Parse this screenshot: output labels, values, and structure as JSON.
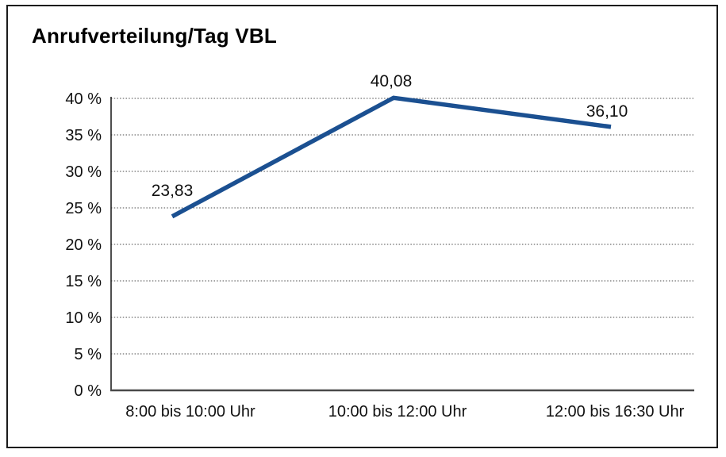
{
  "window": {
    "background": "#ffffff",
    "frame_border_color": "#1a1a1a"
  },
  "chart_data": {
    "type": "line",
    "title": "Anrufverteilung/Tag VBL",
    "categories": [
      "8:00 bis 10:00 Uhr",
      "10:00 bis 12:00 Uhr",
      "12:00 bis 16:30 Uhr"
    ],
    "series": [
      {
        "name": "Anrufverteilung/Tag VBL",
        "values": [
          23.83,
          40.08,
          36.1
        ]
      }
    ],
    "values": [
      23.83,
      40.08,
      36.1
    ],
    "value_labels": [
      "23,83",
      "40,08",
      "36,10"
    ],
    "xlabel": "",
    "ylabel": "",
    "ylim": [
      0,
      40
    ],
    "ytick_step": 5,
    "ytick_labels": [
      "0 %",
      "5 %",
      "10 %",
      "15 %",
      "20 %",
      "25 %",
      "30 %",
      "35 %",
      "40 %"
    ],
    "grid": "horizontal-dotted",
    "legend": "none",
    "line_color": "#1b5091",
    "gridline_color": "#4a4a4a",
    "axis_color": "#222222",
    "baseline_color": "#4a4a4a",
    "text_color": "#111111"
  }
}
